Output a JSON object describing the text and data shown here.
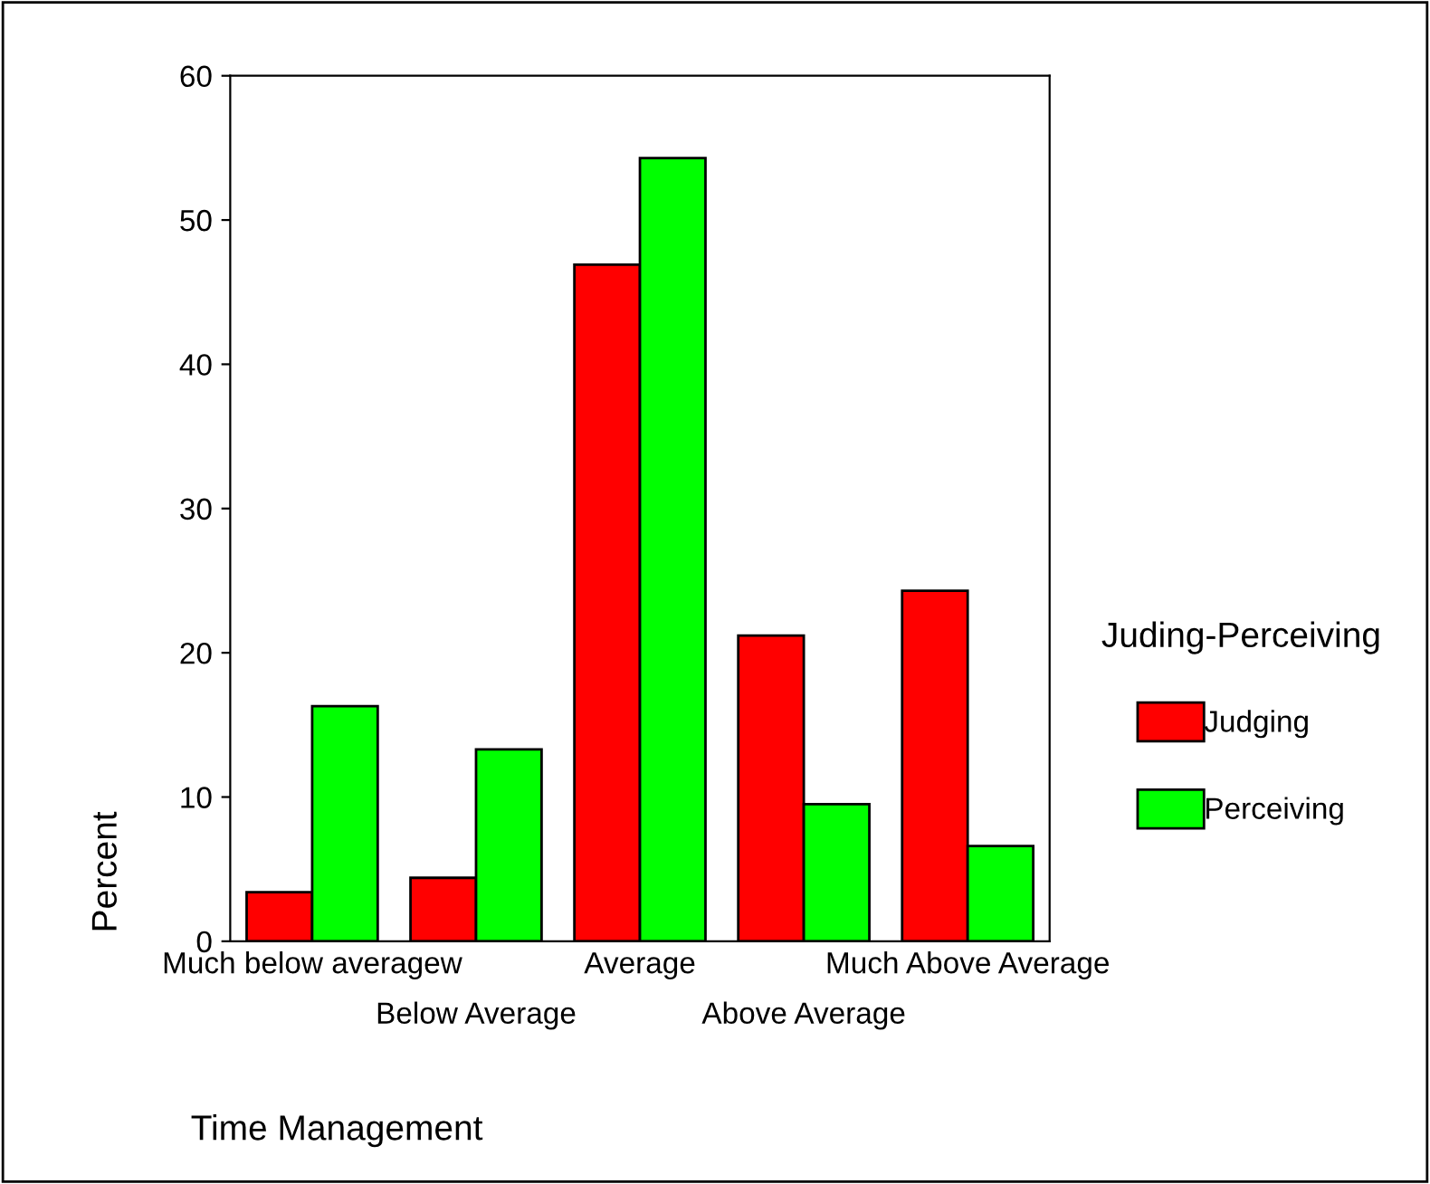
{
  "chart_data": {
    "type": "bar",
    "xlabel": "Time Management",
    "ylabel": "Percent",
    "legend_title": "Juding-Perceiving",
    "categories": [
      "Much below averagew",
      "Below Average",
      "Average",
      "Above Average",
      "Much Above Average"
    ],
    "series": [
      {
        "name": "Judging",
        "color": "#ff0000",
        "values": [
          3.4,
          4.4,
          46.9,
          21.2,
          24.3
        ]
      },
      {
        "name": "Perceiving",
        "color": "#00ff00",
        "values": [
          16.3,
          13.3,
          54.3,
          9.5,
          6.6
        ]
      }
    ],
    "ylim": [
      0,
      60
    ],
    "yticks": [
      0,
      10,
      20,
      30,
      40,
      50,
      60
    ],
    "grid": false,
    "legend": "right"
  }
}
